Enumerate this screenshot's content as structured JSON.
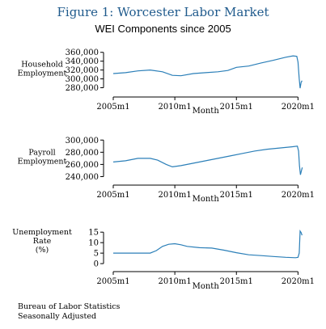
{
  "figure": {
    "title": "Figure 1: Worcester Labor Market",
    "subtitle": "WEI Components since 2005"
  },
  "chart_data": [
    {
      "type": "line",
      "ylabel": [
        "Household",
        "Employment"
      ],
      "xlabel": "Month",
      "x_ticks": [
        "2005m1",
        "2010m1",
        "2015m1",
        "2020m1"
      ],
      "y_ticks": [
        "280,000",
        "300,000",
        "320,000",
        "340,000",
        "360,000"
      ],
      "ylim": [
        270000,
        365000
      ],
      "xlim": [
        2005.0,
        2020.5
      ],
      "series": [
        {
          "points": [
            [
              2005.0,
              312000
            ],
            [
              2006.0,
              314000
            ],
            [
              2007.0,
              318000
            ],
            [
              2008.0,
              320000
            ],
            [
              2009.0,
              316000
            ],
            [
              2009.8,
              308000
            ],
            [
              2010.5,
              307000
            ],
            [
              2011.5,
              312000
            ],
            [
              2012.5,
              314000
            ],
            [
              2013.5,
              316000
            ],
            [
              2014.3,
              319000
            ],
            [
              2015.0,
              326000
            ],
            [
              2016.0,
              329000
            ],
            [
              2017.0,
              336000
            ],
            [
              2018.0,
              342000
            ],
            [
              2019.0,
              349000
            ],
            [
              2019.6,
              352000
            ],
            [
              2019.9,
              351000
            ],
            [
              2020.0,
              338000
            ],
            [
              2020.1,
              300000
            ],
            [
              2020.17,
              279000
            ],
            [
              2020.25,
              292000
            ],
            [
              2020.33,
              296000
            ]
          ]
        }
      ]
    },
    {
      "type": "line",
      "ylabel": [
        "Payroll",
        "Employment"
      ],
      "xlabel": "Month",
      "x_ticks": [
        "2005m1",
        "2010m1",
        "2015m1",
        "2020m1"
      ],
      "y_ticks": [
        "240,000",
        "260,000",
        "280,000",
        "300,000"
      ],
      "ylim": [
        234000,
        303000
      ],
      "xlim": [
        2005.0,
        2020.5
      ],
      "series": [
        {
          "points": [
            [
              2005.0,
              264000
            ],
            [
              2006.0,
              266000
            ],
            [
              2007.0,
              270000
            ],
            [
              2008.0,
              270000
            ],
            [
              2008.6,
              267000
            ],
            [
              2009.3,
              260000
            ],
            [
              2009.8,
              256000
            ],
            [
              2010.5,
              258000
            ],
            [
              2011.5,
              262000
            ],
            [
              2012.5,
              266000
            ],
            [
              2013.5,
              270000
            ],
            [
              2014.5,
              274000
            ],
            [
              2015.5,
              278000
            ],
            [
              2016.5,
              282000
            ],
            [
              2017.5,
              285000
            ],
            [
              2018.5,
              287000
            ],
            [
              2019.5,
              289000
            ],
            [
              2019.95,
              290000
            ],
            [
              2020.05,
              282000
            ],
            [
              2020.12,
              258000
            ],
            [
              2020.2,
              243000
            ],
            [
              2020.28,
              250000
            ],
            [
              2020.35,
              255000
            ]
          ]
        }
      ]
    },
    {
      "type": "line",
      "ylabel": [
        "Unemployment",
        "Rate",
        "(%)"
      ],
      "xlabel": "Month",
      "x_ticks": [
        "2005m1",
        "2010m1",
        "2015m1",
        "2020m1"
      ],
      "y_ticks": [
        "0",
        "5",
        "10",
        "15"
      ],
      "ylim": [
        -1.5,
        17
      ],
      "xlim": [
        2005.0,
        2020.5
      ],
      "series": [
        {
          "points": [
            [
              2005.0,
              5.0
            ],
            [
              2006.0,
              5.0
            ],
            [
              2007.0,
              5.0
            ],
            [
              2008.0,
              5.0
            ],
            [
              2008.5,
              6.2
            ],
            [
              2009.0,
              8.2
            ],
            [
              2009.5,
              9.2
            ],
            [
              2010.0,
              9.5
            ],
            [
              2010.5,
              9.0
            ],
            [
              2011.0,
              8.2
            ],
            [
              2012.0,
              7.6
            ],
            [
              2013.0,
              7.4
            ],
            [
              2014.0,
              6.4
            ],
            [
              2015.0,
              5.2
            ],
            [
              2016.0,
              4.2
            ],
            [
              2017.0,
              3.8
            ],
            [
              2018.0,
              3.4
            ],
            [
              2019.0,
              3.0
            ],
            [
              2019.8,
              2.8
            ],
            [
              2020.0,
              3.0
            ],
            [
              2020.1,
              5.0
            ],
            [
              2020.17,
              15.5
            ],
            [
              2020.25,
              14.8
            ],
            [
              2020.33,
              13.5
            ]
          ]
        }
      ]
    }
  ],
  "notes": {
    "line1": "Bureau of Labor Statistics",
    "line2": "Seasonally Adjusted"
  }
}
